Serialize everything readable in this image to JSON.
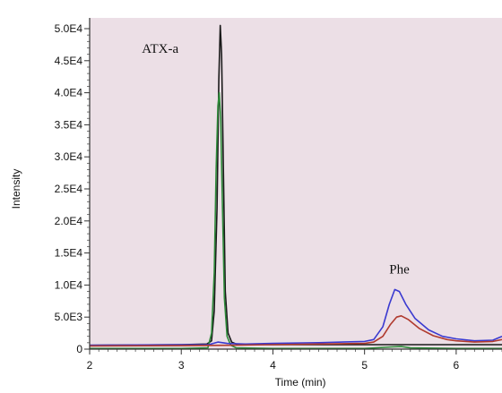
{
  "chart_data": {
    "type": "line",
    "xlabel": "Time (min)",
    "ylabel": "Intensity",
    "xlim": [
      2,
      6.5
    ],
    "ylim": [
      0,
      50000
    ],
    "x_ticks": [
      2,
      3,
      4,
      5,
      6
    ],
    "x_tick_labels": [
      "2",
      "3",
      "4",
      "5",
      "6"
    ],
    "y_ticks": [
      0,
      5000,
      10000,
      15000,
      20000,
      25000,
      30000,
      35000,
      40000,
      45000,
      50000
    ],
    "y_tick_labels": [
      "0",
      "5.0E3",
      "1.0E4",
      "1.5E4",
      "2.0E4",
      "2.5E4",
      "3.0E4",
      "3.5E4",
      "4.0E4",
      "4.5E4",
      "5.0E4"
    ],
    "plot_background": "#ecdfe6",
    "annotations": [
      {
        "text": "ATX-a",
        "x": 2.77,
        "y": 46200
      },
      {
        "text": "Phe",
        "x": 5.38,
        "y": 11800
      }
    ],
    "series": [
      {
        "color": "#1a1a1a",
        "x": [
          2.0,
          3.0,
          3.28,
          3.33,
          3.36,
          3.39,
          3.41,
          3.425,
          3.44,
          3.46,
          3.48,
          3.51,
          3.55,
          3.6,
          4.0,
          5.0,
          6.0,
          6.5
        ],
        "y": [
          600,
          700,
          800,
          1300,
          6000,
          22000,
          42000,
          50500,
          46000,
          28000,
          9000,
          2500,
          1100,
          800,
          700,
          700,
          700,
          700
        ]
      },
      {
        "color": "#2e8b3a",
        "x": [
          2.0,
          3.0,
          3.29,
          3.33,
          3.36,
          3.38,
          3.4,
          3.415,
          3.43,
          3.45,
          3.47,
          3.5,
          3.54,
          3.6,
          4.0,
          5.0,
          5.3,
          5.4,
          5.5,
          6.0,
          6.5
        ],
        "y": [
          100,
          100,
          200,
          2500,
          12000,
          28000,
          38000,
          40000,
          36000,
          22000,
          8000,
          2000,
          600,
          200,
          100,
          100,
          350,
          400,
          200,
          100,
          100
        ]
      },
      {
        "color": "#3a3ad0",
        "x": [
          2.0,
          2.5,
          3.0,
          3.3,
          3.4,
          3.5,
          3.7,
          4.0,
          4.5,
          5.0,
          5.1,
          5.2,
          5.27,
          5.33,
          5.38,
          5.45,
          5.55,
          5.7,
          5.85,
          6.0,
          6.2,
          6.4,
          6.5
        ],
        "y": [
          600,
          650,
          700,
          700,
          1100,
          900,
          800,
          900,
          1000,
          1200,
          1500,
          3500,
          7000,
          9300,
          9000,
          7000,
          4800,
          3000,
          2000,
          1600,
          1300,
          1400,
          2000
        ]
      },
      {
        "color": "#b03a2e",
        "x": [
          2.0,
          3.0,
          3.5,
          4.0,
          4.5,
          5.0,
          5.1,
          5.2,
          5.28,
          5.35,
          5.4,
          5.48,
          5.6,
          5.75,
          5.9,
          6.0,
          6.2,
          6.4,
          6.5
        ],
        "y": [
          500,
          550,
          600,
          700,
          800,
          900,
          1100,
          2000,
          3800,
          5000,
          5200,
          4600,
          3200,
          2100,
          1500,
          1300,
          1100,
          1200,
          1500
        ]
      }
    ]
  }
}
